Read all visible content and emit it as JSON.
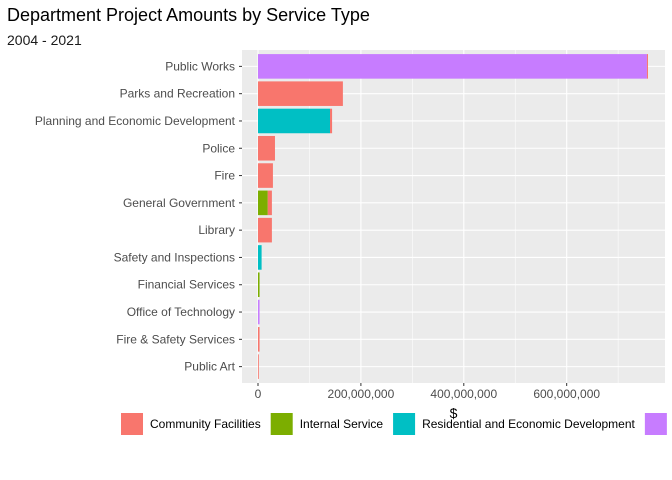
{
  "chart_data": {
    "type": "bar",
    "orientation": "horizontal",
    "stacked": true,
    "title": "Department Project Amounts by Service Type",
    "subtitle": "2004 - 2021",
    "xlabel": "$",
    "ylabel": "",
    "xlim": [
      0,
      760000000
    ],
    "x_ticks": [
      0,
      200000000,
      400000000,
      600000000
    ],
    "x_tick_labels": [
      "0",
      "200,000,000",
      "400,000,000",
      "600,000,000"
    ],
    "grid": true,
    "legend_position": "bottom",
    "categories": [
      "Public Works",
      "Parks and Recreation",
      "Planning and Economic Development",
      "Police",
      "Fire",
      "General Government",
      "Library",
      "Safety and Inspections",
      "Financial Services",
      "Office of Technology",
      "Fire & Safety Services",
      "Public Art"
    ],
    "series": [
      {
        "name": "Community Facilities",
        "color": "#F8766D",
        "values": [
          2000000,
          165000000,
          4000000,
          33000000,
          29000000,
          8000000,
          27000000,
          0,
          0,
          0,
          3000000,
          500000
        ]
      },
      {
        "name": "Internal Service",
        "color": "#7CAE00",
        "values": [
          0,
          0,
          0,
          0,
          0,
          19000000,
          0,
          0,
          3000000,
          0,
          0,
          0
        ]
      },
      {
        "name": "Residential and Economic Development",
        "color": "#00BFC4",
        "values": [
          0,
          0,
          140000000,
          0,
          0,
          0,
          0,
          7000000,
          0,
          0,
          0,
          0
        ]
      },
      {
        "name": "",
        "color": "#C77CFF",
        "values": [
          756000000,
          0,
          0,
          0,
          0,
          0,
          0,
          0,
          0,
          3000000,
          0,
          0
        ]
      }
    ],
    "stack_order": [
      3,
      2,
      1,
      0
    ]
  }
}
